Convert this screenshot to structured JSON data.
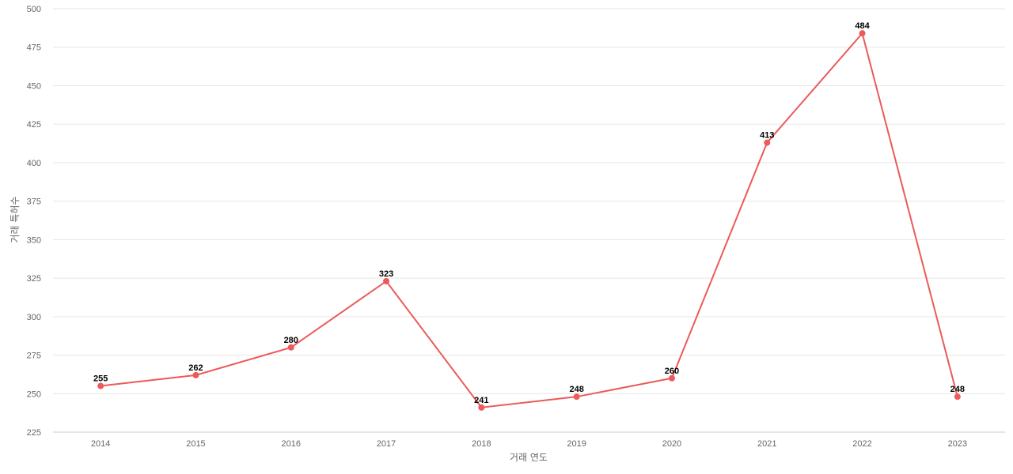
{
  "chart_data": {
    "type": "line",
    "title": "",
    "xlabel": "거래 연도",
    "ylabel": "거래 특허수",
    "x": [
      "2014",
      "2015",
      "2016",
      "2017",
      "2018",
      "2019",
      "2020",
      "2021",
      "2022",
      "2023"
    ],
    "series": [
      {
        "values": [
          255,
          262,
          280,
          323,
          241,
          248,
          260,
          413,
          484,
          248
        ]
      }
    ],
    "ylim": [
      225,
      500
    ],
    "yticks": [
      225,
      250,
      275,
      300,
      325,
      350,
      375,
      400,
      425,
      450,
      475,
      500
    ],
    "grid": true,
    "legend": "none",
    "colors": {
      "line": "#ec5a5a",
      "grid": "#e6e6e6",
      "text": "#666666"
    }
  }
}
